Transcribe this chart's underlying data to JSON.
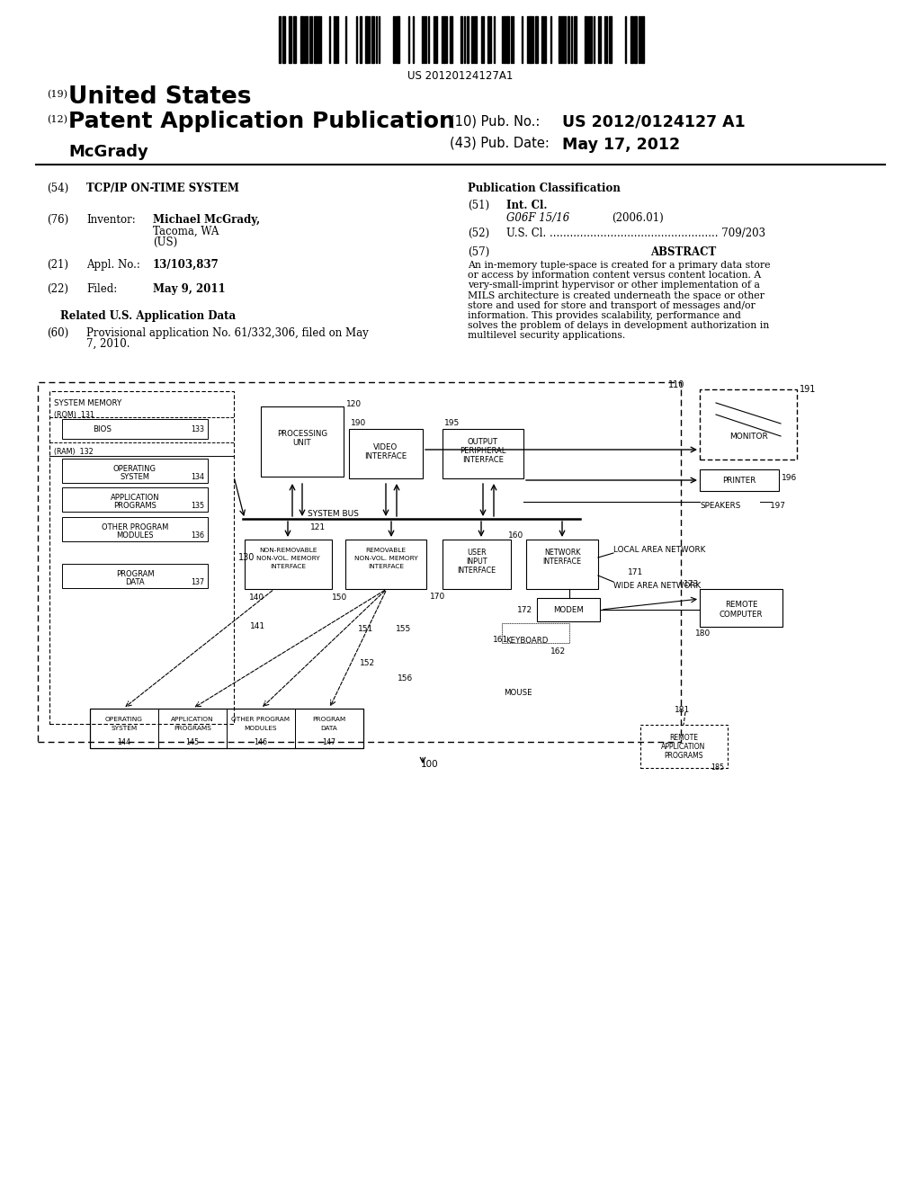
{
  "bg_color": "#ffffff",
  "barcode_text": "US 20120124127A1",
  "title_19": "(19)",
  "title_19_text": "United States",
  "title_12": "(12)",
  "title_12_text": "Patent Application Publication",
  "author": "McGrady",
  "pub_no_label": "(10) Pub. No.:",
  "pub_no_value": "US 2012/0124127 A1",
  "pub_date_label": "(43) Pub. Date:",
  "pub_date_value": "May 17, 2012",
  "field_54_label": "(54)",
  "field_54_text": "TCP/IP ON-TIME SYSTEM",
  "pub_class_title": "Publication Classification",
  "field_76_label": "(76)",
  "field_76_title": "Inventor:",
  "field_51_label": "(51)",
  "field_51_title": "Int. Cl.",
  "field_51_class": "G06F 15/16",
  "field_51_year": "(2006.01)",
  "field_52_label": "(52)",
  "field_52_text": "U.S. Cl. .................................................. 709/203",
  "field_57_label": "(57)",
  "field_57_title": "ABSTRACT",
  "abstract_text": "An in-memory tuple-space is created for a primary data store or access by information content versus content location. A very-small-imprint hypervisor or other implementation of a MILS architecture is created underneath the space or other store and used for store and transport of messages and/or information. This provides scalability, performance and solves the problem of delays in development authorization in multilevel security applications.",
  "field_21_label": "(21)",
  "field_21_title": "Appl. No.:",
  "field_21_text": "13/103,837",
  "field_22_label": "(22)",
  "field_22_title": "Filed:",
  "field_22_text": "May 9, 2011",
  "related_title": "Related U.S. Application Data",
  "field_60_label": "(60)",
  "field_60_text_1": "Provisional application No. 61/332,306, filed on May",
  "field_60_text_2": "7, 2010.",
  "abstract_lines": [
    "An in-memory tuple-space is created for a primary data store",
    "or access by information content versus content location. A",
    "very-small-imprint hypervisor or other implementation of a",
    "MILS architecture is created underneath the space or other",
    "store and used for store and transport of messages and/or",
    "information. This provides scalability, performance and",
    "solves the problem of delays in development authorization in",
    "multilevel security applications."
  ]
}
